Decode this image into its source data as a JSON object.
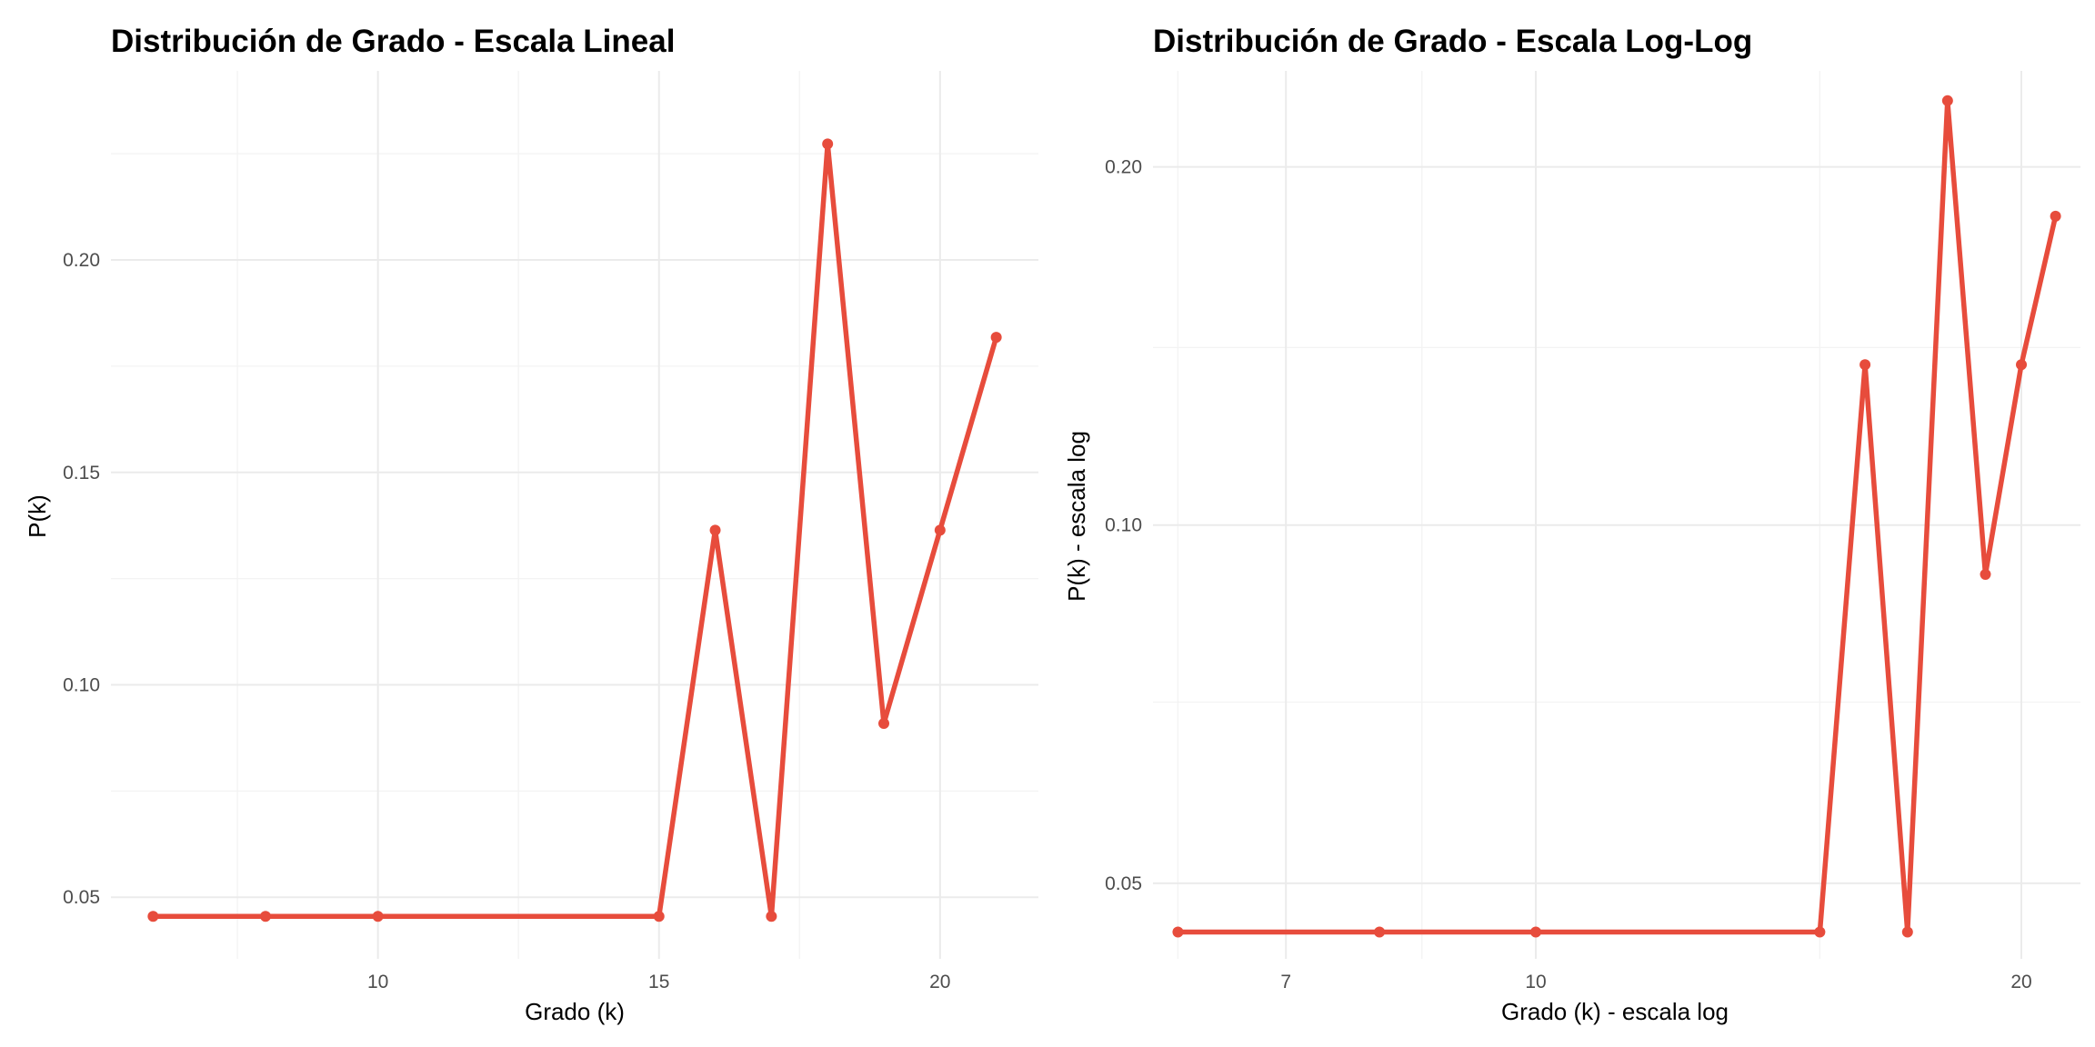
{
  "chart_data": [
    {
      "type": "line",
      "title": "Distribución de Grado - Escala Lineal",
      "xlabel": "Grado (k)",
      "ylabel": "P(k)",
      "x_scale": "linear",
      "y_scale": "linear",
      "xlim": [
        5.25,
        21.75
      ],
      "ylim": [
        0.0355,
        0.2445
      ],
      "x_ticks": [
        10,
        15,
        20
      ],
      "x_tick_labels": [
        "10",
        "15",
        "20"
      ],
      "x_minor_ticks": [
        7.5,
        12.5,
        17.5
      ],
      "y_ticks": [
        0.05,
        0.1,
        0.15,
        0.2
      ],
      "y_tick_labels": [
        "0.05",
        "0.10",
        "0.15",
        "0.20"
      ],
      "y_minor_ticks": [
        0.075,
        0.125,
        0.175,
        0.225
      ],
      "grid": true,
      "series": [
        {
          "color": "#e74c3c",
          "x": [
            6,
            8,
            10,
            15,
            16,
            17,
            18,
            19,
            20,
            21
          ],
          "y": [
            0.0455,
            0.0455,
            0.0455,
            0.0455,
            0.1364,
            0.0455,
            0.2273,
            0.0909,
            0.1364,
            0.1818
          ]
        }
      ]
    },
    {
      "type": "line",
      "title": "Distribución de Grado - Escala Log-Log",
      "xlabel": "Grado (k) - escala log",
      "ylabel": "P(k) - escala log",
      "x_scale": "log",
      "y_scale": "log",
      "xlim": [
        5.79,
        21.76
      ],
      "ylim": [
        0.0432,
        0.2408
      ],
      "x_ticks": [
        7,
        10,
        20
      ],
      "x_tick_labels": [
        "7",
        "10",
        "20"
      ],
      "x_minor_ticks": [
        6,
        8.5,
        15
      ],
      "y_ticks": [
        0.05,
        0.1,
        0.2
      ],
      "y_tick_labels": [
        "0.05",
        "0.10",
        "0.20"
      ],
      "y_minor_ticks": [
        0.071,
        0.141
      ],
      "grid": true,
      "series": [
        {
          "color": "#e74c3c",
          "x": [
            6,
            8,
            10,
            15,
            16,
            17,
            18,
            19,
            20,
            21
          ],
          "y": [
            0.0455,
            0.0455,
            0.0455,
            0.0455,
            0.1364,
            0.0455,
            0.2273,
            0.0909,
            0.1364,
            0.1818
          ]
        }
      ]
    }
  ]
}
